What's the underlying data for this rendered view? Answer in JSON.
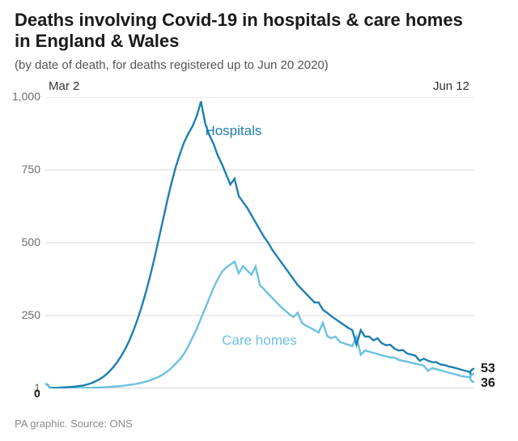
{
  "title": "Deaths involving Covid-19 in hospitals & care homes\nin England & Wales",
  "subtitle": "(by date of death, for deaths registered up to Jun 20 2020)",
  "date_start_label": "Mar 2",
  "date_end_label": "Jun 12",
  "footer": "PA graphic. Source: ONS",
  "chart": {
    "type": "line",
    "background_color": "#ffffff",
    "grid_color": "#d9d9d9",
    "ylim": [
      0,
      1000
    ],
    "ytick_labels": [
      "1,000",
      "750",
      "500",
      "250",
      "1"
    ],
    "ytick_values": [
      1000,
      750,
      500,
      250,
      1
    ],
    "x_count": 103,
    "series": [
      {
        "key": "hospitals",
        "label": "Hospitals",
        "label_x": 38,
        "label_y": 870,
        "color": "#1e7fb0",
        "line_width": 2.4,
        "end_value_label": "53",
        "start_value": 1,
        "data": [
          1,
          1,
          2,
          2,
          3,
          4,
          5,
          6,
          8,
          10,
          14,
          18,
          25,
          32,
          42,
          55,
          70,
          88,
          110,
          135,
          165,
          200,
          240,
          285,
          335,
          390,
          450,
          515,
          580,
          645,
          705,
          760,
          805,
          845,
          875,
          900,
          935,
          985,
          910,
          870,
          840,
          800,
          770,
          735,
          700,
          720,
          660,
          640,
          620,
          595,
          570,
          545,
          520,
          500,
          475,
          455,
          435,
          415,
          395,
          375,
          355,
          340,
          325,
          310,
          295,
          295,
          270,
          260,
          248,
          238,
          228,
          218,
          208,
          200,
          150,
          200,
          178,
          178,
          165,
          172,
          155,
          148,
          150,
          137,
          130,
          132,
          120,
          116,
          112,
          95,
          102,
          95,
          90,
          90,
          82,
          80,
          75,
          72,
          68,
          64,
          60,
          56,
          53
        ]
      },
      {
        "key": "care_homes",
        "label": "Care homes",
        "label_x": 42,
        "label_y": 150,
        "color": "#6cc1e0",
        "line_width": 2.4,
        "end_value_label": "36",
        "start_value": 0,
        "data": [
          0,
          0,
          0,
          0,
          0,
          0,
          1,
          1,
          1,
          2,
          2,
          2,
          3,
          3,
          4,
          5,
          6,
          7,
          8,
          10,
          12,
          14,
          17,
          20,
          24,
          28,
          34,
          40,
          48,
          58,
          70,
          85,
          100,
          120,
          145,
          175,
          205,
          240,
          275,
          310,
          345,
          375,
          400,
          415,
          425,
          435,
          395,
          420,
          405,
          390,
          418,
          355,
          340,
          325,
          310,
          295,
          280,
          268,
          255,
          245,
          260,
          225,
          215,
          208,
          200,
          192,
          225,
          180,
          172,
          178,
          160,
          155,
          150,
          145,
          178,
          115,
          130,
          126,
          122,
          118,
          114,
          110,
          106,
          106,
          98,
          95,
          92,
          88,
          85,
          82,
          78,
          60,
          70,
          66,
          62,
          58,
          54,
          50,
          46,
          42,
          40,
          38,
          36
        ]
      }
    ]
  },
  "zero_label": "0",
  "title_fontsize": 22,
  "subtitle_fontsize": 15,
  "label_fontsize": 17,
  "footer_fontsize": 13
}
